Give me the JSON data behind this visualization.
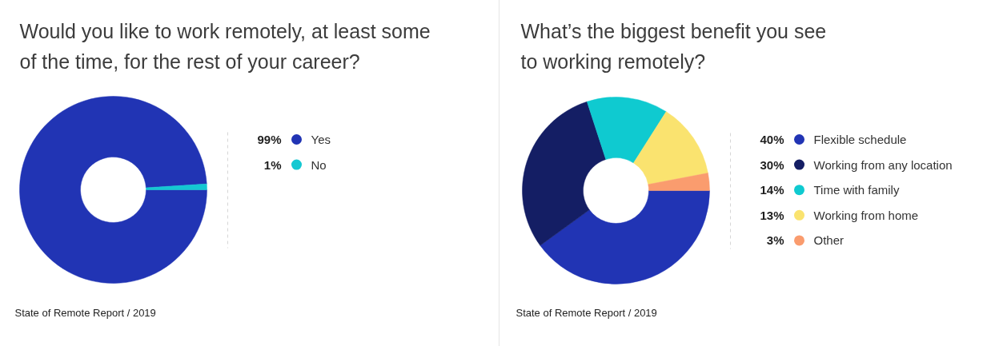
{
  "chart_data": [
    {
      "type": "donut",
      "title": "Would you like to work remotely, at least some of the time, for the rest of your career?",
      "categories": [
        "Yes",
        "No"
      ],
      "values": [
        99,
        1
      ],
      "value_labels": [
        "99%",
        "1%"
      ],
      "colors": [
        "#2134b4",
        "#14c8d2"
      ],
      "legend": "right",
      "annotations": [
        "State of Remote Report / 2019"
      ]
    },
    {
      "type": "donut",
      "title": "What’s the biggest benefit you see to working remotely?",
      "categories": [
        "Flexible schedule",
        "Working from any location",
        "Time with family",
        "Working from home",
        "Other"
      ],
      "values": [
        40,
        30,
        14,
        13,
        3
      ],
      "value_labels": [
        "40%",
        "30%",
        "14%",
        "13%",
        "3%"
      ],
      "colors": [
        "#2134b4",
        "#141e64",
        "#0fcad0",
        "#fae36f",
        "#fa9c6e"
      ],
      "legend": "right",
      "annotations": [
        "State of Remote Report / 2019"
      ]
    }
  ]
}
